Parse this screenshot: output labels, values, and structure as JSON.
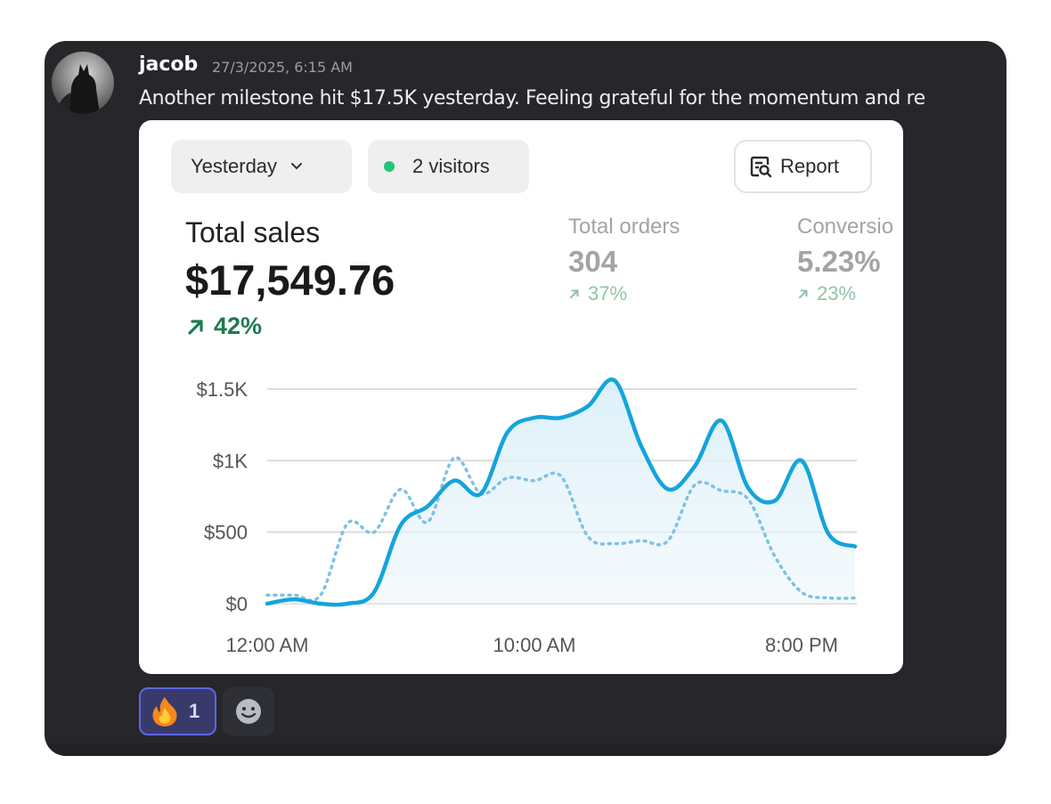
{
  "message": {
    "author": "jacob",
    "timestamp": "27/3/2025, 6:15 AM",
    "text": "Another milestone hit $17.5K yesterday. Feeling grateful for the momentum and re"
  },
  "dashboard": {
    "date_filter": "Yesterday",
    "visitors": "2 visitors",
    "report_label": "Report",
    "metrics": {
      "total_sales": {
        "label": "Total sales",
        "value": "$17,549.76",
        "change": "42%"
      },
      "total_orders": {
        "label": "Total orders",
        "value": "304",
        "change": "37%"
      },
      "conversion": {
        "label": "Conversio",
        "value": "5.23%",
        "change": "23%"
      }
    }
  },
  "chart_data": {
    "type": "line",
    "x": [
      "12:00 AM",
      "1:00 AM",
      "2:00 AM",
      "3:00 AM",
      "4:00 AM",
      "5:00 AM",
      "6:00 AM",
      "7:00 AM",
      "8:00 AM",
      "9:00 AM",
      "10:00 AM",
      "11:00 AM",
      "12:00 PM",
      "1:00 PM",
      "2:00 PM",
      "3:00 PM",
      "4:00 PM",
      "5:00 PM",
      "6:00 PM",
      "7:00 PM",
      "8:00 PM",
      "9:00 PM",
      "10:00 PM"
    ],
    "xticks": [
      "12:00 AM",
      "10:00 AM",
      "8:00 PM"
    ],
    "yticks": [
      "$0",
      "$500",
      "$1K",
      "$1.5K"
    ],
    "ylim": [
      0,
      1500
    ],
    "series": [
      {
        "style": "solid",
        "color": "#14a4dc",
        "fill": true,
        "values": [
          0,
          30,
          0,
          0,
          80,
          550,
          680,
          860,
          770,
          1200,
          1300,
          1300,
          1380,
          1560,
          1100,
          800,
          960,
          1280,
          810,
          720,
          1000,
          490,
          400
        ]
      },
      {
        "style": "dotted",
        "color": "#7ec2e3",
        "fill": false,
        "values": [
          60,
          60,
          60,
          560,
          500,
          800,
          570,
          1020,
          770,
          880,
          860,
          890,
          470,
          420,
          440,
          440,
          830,
          790,
          730,
          330,
          80,
          40,
          40
        ]
      }
    ],
    "grid": true
  },
  "reactions": {
    "fire_count": "1"
  },
  "colors": {
    "frame_bg": "#26262b",
    "accent_line": "#14a4dc",
    "positive": "#1f7a4e",
    "reaction_border": "#6066e0"
  }
}
